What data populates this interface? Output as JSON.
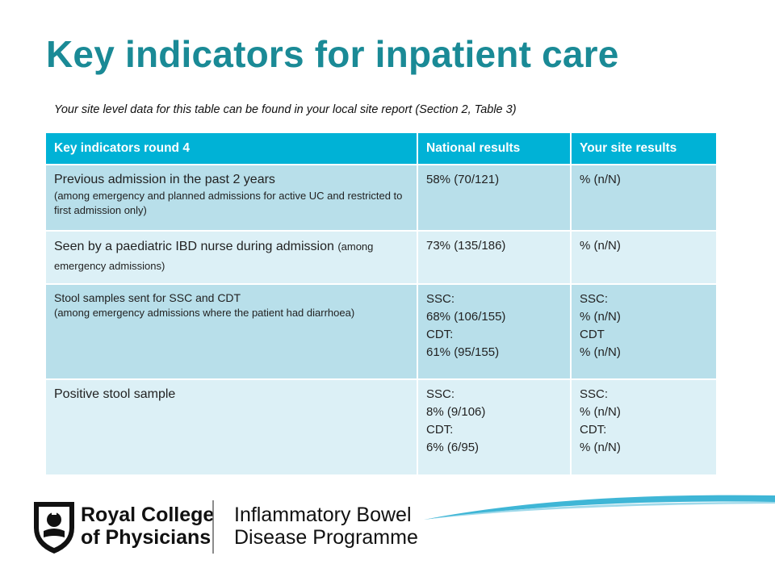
{
  "title": "Key indicators for inpatient care",
  "subtitle": "Your site level data for this table can be found in your local site report (Section 2, Table 3)",
  "table": {
    "headers": [
      "Key indicators round 4",
      "National results",
      "Your site results"
    ],
    "rows": [
      {
        "indicator_main": "Previous admission in the past 2 years",
        "indicator_note": "(among emergency and planned admissions for active UC and restricted to first admission only)",
        "national": [
          "58% (70/121)"
        ],
        "site": [
          "% (n/N)"
        ]
      },
      {
        "indicator_main": "Seen by a paediatric IBD nurse during admission",
        "indicator_note": "(among emergency admissions)",
        "national": [
          "73% (135/186)"
        ],
        "site": [
          "% (n/N)"
        ]
      },
      {
        "indicator_main": "Stool samples sent for SSC and CDT",
        "indicator_note": "(among emergency admissions where the patient had diarrhoea)",
        "national": [
          "SSC:",
          "68% (106/155)",
          "CDT:",
          "61% (95/155)"
        ],
        "site": [
          "SSC:",
          "% (n/N)",
          "CDT",
          "% (n/N)"
        ]
      },
      {
        "indicator_main": "Positive stool sample",
        "indicator_note": "",
        "national": [
          "SSC:",
          "8% (9/106)",
          "CDT:",
          "6% (6/95)"
        ],
        "site": [
          "SSC:",
          "% (n/N)",
          "CDT:",
          "% (n/N)"
        ]
      }
    ]
  },
  "footer": {
    "rcp_line1": "Royal College",
    "rcp_line2": "of Physicians",
    "programme_line1": "Inflammatory Bowel",
    "programme_line2": "Disease Programme"
  },
  "colors": {
    "title": "#1a8a96",
    "header_bg": "#00b2d6",
    "row_dark": "#b8dfea",
    "row_light": "#dcf0f6",
    "site_text": "#1f3c97"
  },
  "icons": [
    "rcp-crest-icon",
    "swoosh-decoration-icon"
  ]
}
